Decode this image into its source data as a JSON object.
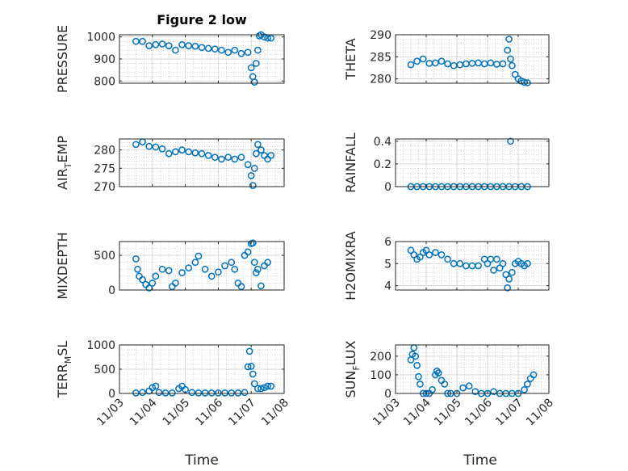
{
  "figure": {
    "title": "Figure 2 low",
    "marker_color": "#0072bd"
  },
  "chart_data": [
    {
      "type": "scatter",
      "ylabel": "PRESSURE",
      "ylim": [
        790,
        1010
      ],
      "yticks": [
        800,
        900,
        1000
      ],
      "xlim": [
        0,
        5
      ],
      "grid": true,
      "x": [
        0.5,
        0.7,
        0.9,
        1.1,
        1.3,
        1.5,
        1.7,
        1.9,
        2.1,
        2.3,
        2.5,
        2.7,
        2.9,
        3.1,
        3.3,
        3.5,
        3.7,
        3.9,
        4.0,
        4.05,
        4.1,
        4.15,
        4.2,
        4.25,
        4.3,
        4.4,
        4.5,
        4.6
      ],
      "y": [
        980,
        980,
        960,
        965,
        968,
        960,
        940,
        965,
        960,
        958,
        952,
        948,
        945,
        940,
        930,
        940,
        925,
        930,
        860,
        820,
        795,
        880,
        940,
        1005,
        1010,
        1000,
        995,
        995
      ]
    },
    {
      "type": "scatter",
      "ylabel": "THETA",
      "ylim": [
        279,
        290
      ],
      "yticks": [
        280,
        285,
        290
      ],
      "xlim": [
        0,
        5
      ],
      "grid": true,
      "x": [
        0.5,
        0.7,
        0.9,
        1.1,
        1.3,
        1.5,
        1.7,
        1.9,
        2.1,
        2.3,
        2.5,
        2.7,
        2.9,
        3.1,
        3.3,
        3.5,
        3.65,
        3.7,
        3.75,
        3.8,
        3.9,
        4.0,
        4.1,
        4.2,
        4.3
      ],
      "y": [
        283.2,
        284.0,
        284.5,
        283.5,
        283.6,
        284.0,
        283.4,
        283.0,
        283.2,
        283.4,
        283.5,
        283.6,
        283.4,
        283.6,
        283.3,
        283.4,
        286.5,
        289.0,
        284.5,
        283.0,
        281.0,
        280.0,
        279.5,
        279.2,
        279.1
      ]
    },
    {
      "type": "scatter",
      "ylabel": "AIR_TEMP",
      "ylim": [
        270,
        283
      ],
      "yticks": [
        270,
        275,
        280
      ],
      "xlim": [
        0,
        5
      ],
      "grid": true,
      "x": [
        0.5,
        0.7,
        0.9,
        1.1,
        1.3,
        1.5,
        1.7,
        1.9,
        2.1,
        2.3,
        2.5,
        2.7,
        2.9,
        3.1,
        3.3,
        3.5,
        3.7,
        3.9,
        4.0,
        4.05,
        4.1,
        4.15,
        4.2,
        4.3,
        4.4,
        4.5,
        4.6
      ],
      "y": [
        281.5,
        282.2,
        281.0,
        280.8,
        280.3,
        279.0,
        279.5,
        280.0,
        279.5,
        279.2,
        279.0,
        278.5,
        278.0,
        277.5,
        278.0,
        277.5,
        278.0,
        276.0,
        273.0,
        270.3,
        275.0,
        279.0,
        281.5,
        280.0,
        278.5,
        277.5,
        278.5
      ]
    },
    {
      "type": "scatter",
      "ylabel": "RAINFALL",
      "ylim": [
        0,
        0.42
      ],
      "yticks": [
        0,
        0.2,
        0.4
      ],
      "xlim": [
        0,
        5
      ],
      "grid": true,
      "x": [
        0.5,
        0.7,
        0.9,
        1.1,
        1.3,
        1.5,
        1.7,
        1.9,
        2.1,
        2.3,
        2.5,
        2.7,
        2.9,
        3.1,
        3.3,
        3.5,
        3.7,
        3.75,
        3.9,
        4.1,
        4.3
      ],
      "y": [
        0,
        0,
        0,
        0,
        0,
        0,
        0,
        0,
        0,
        0,
        0,
        0,
        0,
        0,
        0,
        0,
        0,
        0.4,
        0,
        0,
        0
      ]
    },
    {
      "type": "scatter",
      "ylabel": "MIXDEPTH",
      "ylim": [
        0,
        700
      ],
      "yticks": [
        0,
        500
      ],
      "xlim": [
        0,
        5
      ],
      "grid": true,
      "x": [
        0.5,
        0.55,
        0.6,
        0.7,
        0.8,
        0.9,
        1.0,
        1.1,
        1.3,
        1.5,
        1.6,
        1.7,
        1.9,
        2.1,
        2.3,
        2.4,
        2.6,
        2.8,
        3.0,
        3.2,
        3.4,
        3.5,
        3.6,
        3.7,
        3.8,
        3.9,
        4.0,
        4.05,
        4.1,
        4.15,
        4.2,
        4.3,
        4.4,
        4.5
      ],
      "y": [
        450,
        300,
        200,
        150,
        80,
        30,
        100,
        200,
        300,
        280,
        50,
        100,
        250,
        320,
        400,
        490,
        300,
        200,
        260,
        350,
        400,
        300,
        100,
        50,
        500,
        550,
        670,
        680,
        400,
        250,
        300,
        60,
        350,
        400
      ]
    },
    {
      "type": "scatter",
      "ylabel": "H2OMIXRA",
      "ylim": [
        3.8,
        6
      ],
      "yticks": [
        4,
        5,
        6
      ],
      "xlim": [
        0,
        5
      ],
      "grid": true,
      "x": [
        0.5,
        0.6,
        0.7,
        0.8,
        0.9,
        1.0,
        1.1,
        1.3,
        1.5,
        1.7,
        1.9,
        2.1,
        2.3,
        2.5,
        2.7,
        2.9,
        3.0,
        3.1,
        3.2,
        3.3,
        3.4,
        3.5,
        3.6,
        3.65,
        3.7,
        3.8,
        3.9,
        4.0,
        4.1,
        4.2,
        4.3
      ],
      "y": [
        5.6,
        5.4,
        5.2,
        5.3,
        5.5,
        5.6,
        5.4,
        5.5,
        5.4,
        5.2,
        5.0,
        5.0,
        4.9,
        4.9,
        4.9,
        5.2,
        5.0,
        5.2,
        4.7,
        5.2,
        4.8,
        5.0,
        4.5,
        3.9,
        4.3,
        4.6,
        5.0,
        5.1,
        5.0,
        4.9,
        5.0
      ]
    },
    {
      "type": "scatter",
      "ylabel": "TERR_MSL",
      "ylim": [
        0,
        1000
      ],
      "yticks": [
        0,
        500,
        1000
      ],
      "xlim": [
        0,
        5
      ],
      "grid": true,
      "x": [
        0.5,
        0.7,
        0.9,
        1.0,
        1.1,
        1.2,
        1.4,
        1.6,
        1.8,
        1.9,
        2.0,
        2.2,
        2.4,
        2.6,
        2.8,
        3.0,
        3.2,
        3.4,
        3.6,
        3.8,
        3.9,
        3.95,
        4.0,
        4.05,
        4.1,
        4.2,
        4.3,
        4.4,
        4.5,
        4.6
      ],
      "y": [
        10,
        20,
        50,
        120,
        150,
        20,
        10,
        10,
        100,
        150,
        80,
        20,
        10,
        10,
        10,
        10,
        10,
        10,
        10,
        20,
        550,
        870,
        560,
        400,
        200,
        100,
        100,
        120,
        150,
        150
      ]
    },
    {
      "type": "scatter",
      "ylabel": "SUN_FLUX",
      "ylim": [
        0,
        260
      ],
      "yticks": [
        0,
        100,
        200
      ],
      "xlim": [
        0,
        5
      ],
      "grid": true,
      "x": [
        0.5,
        0.55,
        0.6,
        0.65,
        0.7,
        0.75,
        0.8,
        0.9,
        1.0,
        1.1,
        1.2,
        1.3,
        1.35,
        1.4,
        1.5,
        1.6,
        1.7,
        1.8,
        2.0,
        2.2,
        2.4,
        2.6,
        2.8,
        3.0,
        3.2,
        3.4,
        3.6,
        3.8,
        4.0,
        4.2,
        4.3,
        4.4,
        4.5
      ],
      "y": [
        180,
        210,
        245,
        200,
        150,
        90,
        50,
        0,
        0,
        0,
        20,
        100,
        120,
        110,
        70,
        50,
        0,
        0,
        0,
        30,
        40,
        10,
        0,
        0,
        10,
        0,
        0,
        0,
        0,
        20,
        50,
        80,
        100
      ]
    }
  ],
  "xaxis": {
    "ticks": [
      0,
      1,
      2,
      3,
      4,
      5
    ],
    "tick_labels": [
      "11/03",
      "11/04",
      "11/05",
      "11/06",
      "11/07",
      "11/08"
    ],
    "label": "Time"
  }
}
